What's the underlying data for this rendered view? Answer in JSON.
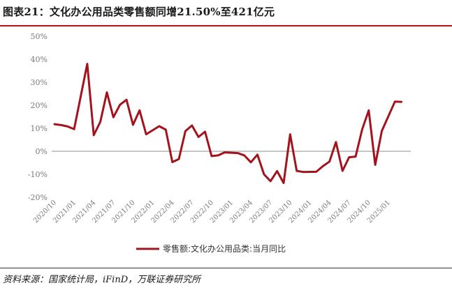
{
  "header": {
    "title": "图表21：文化办公用品类零售额同增21.50%至421亿元"
  },
  "footer": {
    "source": "资料来源：国家统计局，iFinD，万联证券研究所"
  },
  "colors": {
    "series": "#a3131d",
    "accent_rule": "#b5121b",
    "axis": "#8c8c8c",
    "tick_text": "#7a7a7a"
  },
  "chart_data": {
    "type": "line",
    "ylim": [
      -20,
      50
    ],
    "yticks": [
      -20,
      -10,
      0,
      10,
      20,
      30,
      40,
      50
    ],
    "ytick_labels": [
      "-20%",
      "-10%",
      "0%",
      "10%",
      "20%",
      "30%",
      "40%",
      "50%"
    ],
    "xtick_labels": [
      "2020/10",
      "2021/01",
      "2021/04",
      "2021/07",
      "2021/10",
      "2022/01",
      "2022/04",
      "2022/07",
      "2022/10",
      "2023/01",
      "2023/04",
      "2023/07",
      "2023/10",
      "2024/01",
      "2024/04",
      "2024/07",
      "2024/10",
      "2025/01"
    ],
    "grid": false,
    "legend_position": "bottom-center",
    "x": [
      "2020/10",
      "2020/11",
      "2020/12",
      "2021/01",
      "2021/02",
      "2021/03",
      "2021/04",
      "2021/05",
      "2021/06",
      "2021/07",
      "2021/08",
      "2021/09",
      "2021/10",
      "2021/11",
      "2021/12",
      "2022/01",
      "2022/02",
      "2022/03",
      "2022/04",
      "2022/05",
      "2022/06",
      "2022/07",
      "2022/08",
      "2022/09",
      "2022/10",
      "2022/11",
      "2022/12",
      "2023/01",
      "2023/02",
      "2023/03",
      "2023/04",
      "2023/05",
      "2023/06",
      "2023/07",
      "2023/08",
      "2023/09",
      "2023/10",
      "2023/11",
      "2023/12",
      "2024/01",
      "2024/02",
      "2024/03",
      "2024/04",
      "2024/05",
      "2024/06",
      "2024/07",
      "2024/08",
      "2024/09",
      "2024/10",
      "2024/11",
      "2024/12",
      "2025/01",
      "2025/02",
      "2025/03",
      "2025/04"
    ],
    "series": [
      {
        "name": "零售额:文化办公用品类:当月同比",
        "values": [
          11.8,
          11.4,
          10.8,
          9.6,
          null,
          38.0,
          7.0,
          12.8,
          25.6,
          14.8,
          20.2,
          22.4,
          11.5,
          17.8,
          7.4,
          null,
          10.9,
          9.4,
          -4.7,
          -3.4,
          8.8,
          11.2,
          6.2,
          8.5,
          -2.1,
          -1.8,
          -0.5,
          null,
          -0.8,
          -1.8,
          -4.8,
          -1.5,
          -10.0,
          -13.0,
          -8.6,
          -13.8,
          7.4,
          -8.5,
          -9.0,
          null,
          -8.9,
          -6.5,
          -4.5,
          4.0,
          -8.5,
          -2.6,
          -2.3,
          9.5,
          17.8,
          -5.9,
          8.8,
          null,
          21.6,
          21.5,
          null
        ]
      }
    ]
  }
}
